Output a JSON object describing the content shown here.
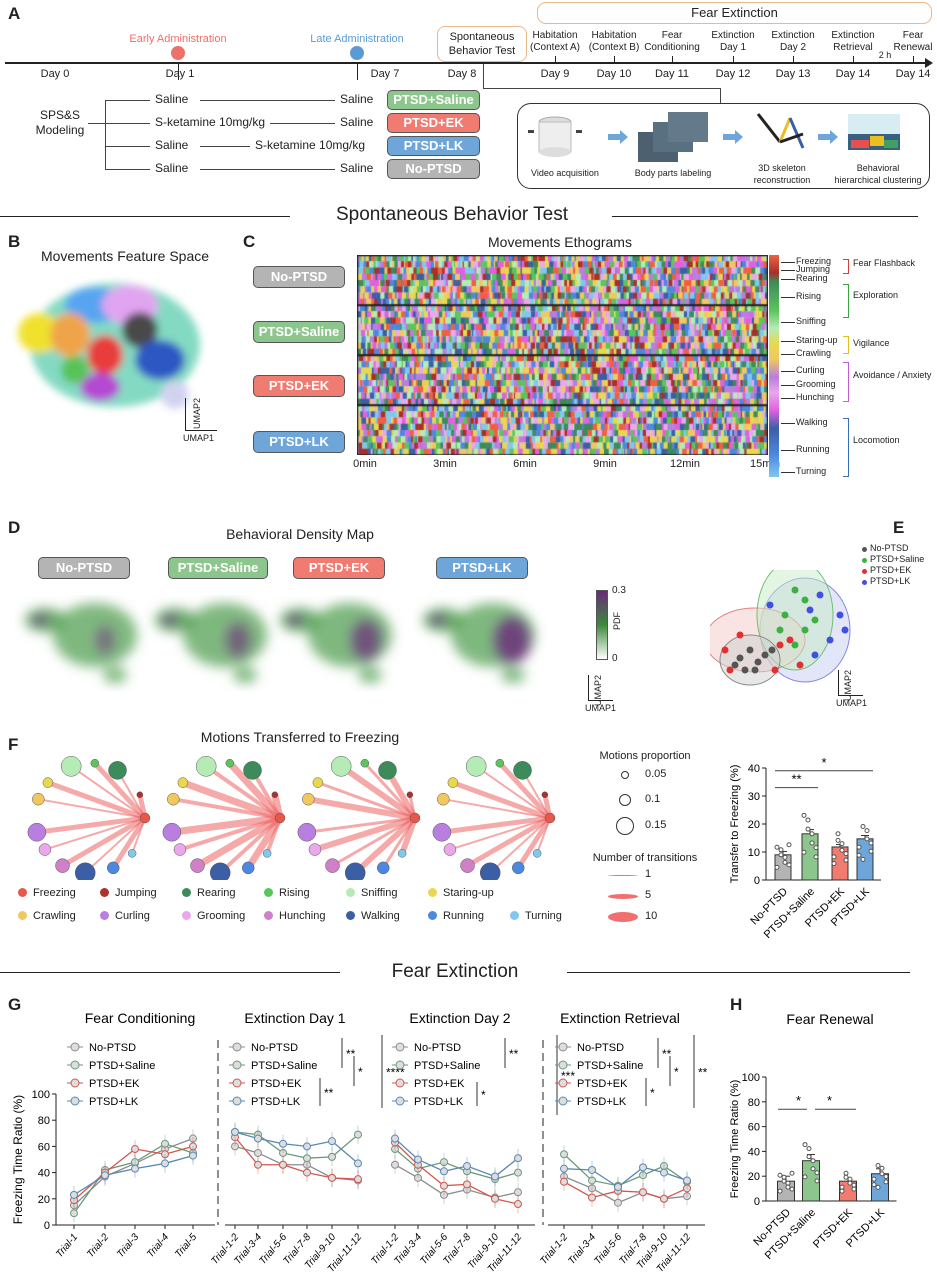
{
  "panel_labels": [
    "A",
    "B",
    "C",
    "D",
    "E",
    "F",
    "G",
    "H"
  ],
  "colors": {
    "no_ptsd": "#b4b4b4",
    "saline": "#8dc68c",
    "ek": "#ef7b71",
    "lk": "#6fa6da",
    "early": "#ef6f6a",
    "late": "#5b9bd5",
    "box_orange": "#e8b98a"
  },
  "panelA": {
    "fear_extinction": "Fear Extinction",
    "early": "Early Administration",
    "late": "Late Administration",
    "spontaneous": "Spontaneous Behavior Test",
    "days": [
      "Day 0",
      "Day 1",
      "Day 7",
      "Day 8",
      "Day 9",
      "Day 10",
      "Day 11",
      "Day 12",
      "Day 13",
      "Day 14",
      "Day 14"
    ],
    "stages": [
      {
        "l1": "Habitation",
        "l2": "(Context A)"
      },
      {
        "l1": "Habitation",
        "l2": "(Context B)"
      },
      {
        "l1": "Fear",
        "l2": "Conditioning"
      },
      {
        "l1": "Extinction",
        "l2": "Day 1"
      },
      {
        "l1": "Extinction",
        "l2": "Day 2"
      },
      {
        "l1": "Extinction",
        "l2": "Retrieval"
      },
      {
        "l1": "Fear",
        "l2": "Renewal"
      }
    ],
    "two_h": "2 h",
    "modeling": "SPS&S Modeling",
    "groups": [
      {
        "first": "Saline",
        "second": "Saline",
        "badge": "PTSD+Saline"
      },
      {
        "first": "S-ketamine 10mg/kg",
        "second": "Saline",
        "badge": "PTSD+EK"
      },
      {
        "first": "Saline",
        "mid": "S-ketamine 10mg/kg",
        "badge": "PTSD+LK"
      },
      {
        "first": "Saline",
        "second": "Saline",
        "badge": "No-PTSD"
      }
    ],
    "pipeline": [
      "Video acquisition",
      "Body parts labeling",
      "3D skeleton reconstruction",
      "Behavioral hierarchical clustering"
    ]
  },
  "section1": "Spontaneous Behavior Test",
  "section2": "Fear  Extinction",
  "panelB": {
    "title": "Movements Feature Space",
    "x": "UMAP1",
    "y": "UMAP2"
  },
  "panelC": {
    "title": "Movements Ethograms",
    "groups": [
      "No-PTSD",
      "PTSD+Saline",
      "PTSD+EK",
      "PTSD+LK"
    ],
    "ticks": [
      "0min",
      "3min",
      "6min",
      "9min",
      "12min",
      "15min"
    ],
    "movements": [
      "Freezing",
      "Jumping",
      "Rearing",
      "Rising",
      "Sniffing",
      "Staring-up",
      "Crawling",
      "Curling",
      "Grooming",
      "Hunching",
      "Walking",
      "Running",
      "Turning"
    ],
    "categories": [
      {
        "name": "Fear Flashback",
        "color": "#d0413a"
      },
      {
        "name": "Exploration",
        "color": "#3aa344"
      },
      {
        "name": "Vigilance",
        "color": "#e0c020"
      },
      {
        "name": "Avoidance / Anxiety",
        "color": "#c060d0"
      },
      {
        "name": "Locomotion",
        "color": "#3a6fb5"
      }
    ]
  },
  "panelD": {
    "title": "Behavioral Density Map",
    "groups": [
      "No-PTSD",
      "PTSD+Saline",
      "PTSD+EK",
      "PTSD+LK"
    ],
    "cbar_max": "0.3",
    "cbar_label": "PDF",
    "cbar_min": "0",
    "x": "UMAP1",
    "y": "UMAP2"
  },
  "panelE": {
    "legend": [
      "No-PTSD",
      "PTSD+Saline",
      "PTSD+EK",
      "PTSD+LK"
    ],
    "x": "UMAP1",
    "y": "UMAP2"
  },
  "panelF": {
    "title": "Motions Transferred to Freezing",
    "prop_title": "Motions proportion",
    "props": [
      "0.05",
      "0.1",
      "0.15"
    ],
    "trans_title": "Number of transitions",
    "trans": [
      "1",
      "5",
      "10"
    ],
    "legend": [
      {
        "name": "Freezing",
        "color": "#e8584a"
      },
      {
        "name": "Jumping",
        "color": "#a8322d"
      },
      {
        "name": "Rearing",
        "color": "#3d8a5a"
      },
      {
        "name": "Rising",
        "color": "#5cc45c"
      },
      {
        "name": "Sniffing",
        "color": "#b5ecb5"
      },
      {
        "name": "Staring-up",
        "color": "#e8d850"
      },
      {
        "name": "Crawling",
        "color": "#f0c860"
      },
      {
        "name": "Curling",
        "color": "#b87ee0"
      },
      {
        "name": "Grooming",
        "color": "#eaa8ea"
      },
      {
        "name": "Hunching",
        "color": "#d080c8"
      },
      {
        "name": "Walking",
        "color": "#3a5fa5"
      },
      {
        "name": "Running",
        "color": "#4d88e0"
      },
      {
        "name": "Turning",
        "color": "#80c8ee"
      }
    ]
  },
  "chart_data": [
    {
      "id": "transfer",
      "type": "bar",
      "title": "",
      "ylabel": "Transfer to Freezing (%)",
      "categories": [
        "No-PTSD",
        "PTSD+Saline",
        "PTSD+EK",
        "PTSD+LK"
      ],
      "values": [
        9,
        16.5,
        11.8,
        14.7
      ],
      "sem": [
        1.2,
        1.5,
        0.9,
        1.2
      ],
      "ylim": [
        0,
        40
      ],
      "yticks": [
        "0",
        "10",
        "20",
        "30",
        "40"
      ],
      "significance": [
        {
          "pair": [
            "No-PTSD",
            "PTSD+Saline"
          ],
          "label": "**"
        },
        {
          "pair": [
            "No-PTSD",
            "PTSD+LK"
          ],
          "label": "*"
        }
      ]
    },
    {
      "id": "freezing",
      "type": "line",
      "ylabel": "Freezing Time Ratio (%)",
      "ylim": [
        0,
        100
      ],
      "yticks": [
        "0",
        "20",
        "40",
        "60",
        "80",
        "100"
      ],
      "panels": [
        {
          "title": "Fear Conditioning",
          "x": [
            "Trial-1",
            "Trial-2",
            "Trial-3",
            "Trial-4",
            "Trial-5"
          ],
          "series": [
            {
              "name": "No-PTSD",
              "values": [
                15,
                37,
                47,
                58,
                66
              ]
            },
            {
              "name": "PTSD+Saline",
              "values": [
                9,
                42,
                48,
                62,
                55
              ]
            },
            {
              "name": "PTSD+EK",
              "values": [
                19,
                40,
                58,
                54,
                60
              ]
            },
            {
              "name": "PTSD+LK",
              "values": [
                23,
                38,
                43,
                47,
                53
              ]
            }
          ],
          "sig": []
        },
        {
          "title": "Extinction Day 1",
          "x": [
            "Trial-1-2",
            "Trial-3-4",
            "Trial-5-6",
            "Trial-7-8",
            "Trial-9-10",
            "Trial-11-12"
          ],
          "series": [
            {
              "name": "No-PTSD",
              "values": [
                60,
                55,
                46,
                46,
                36,
                34
              ]
            },
            {
              "name": "PTSD+Saline",
              "values": [
                71,
                69,
                55,
                51,
                52,
                69
              ]
            },
            {
              "name": "PTSD+EK",
              "values": [
                67,
                46,
                46,
                40,
                36,
                35
              ]
            },
            {
              "name": "PTSD+LK",
              "values": [
                71,
                66,
                62,
                60,
                64,
                47
              ]
            }
          ],
          "sig": [
            "**",
            "*",
            "**",
            "****"
          ]
        },
        {
          "title": "Extinction Day 2",
          "x": [
            "Trial-1-2",
            "Trial-3-4",
            "Trial-5-6",
            "Trial-7-8",
            "Trial-9-10",
            "Trial-11-12"
          ],
          "series": [
            {
              "name": "No-PTSD",
              "values": [
                46,
                36,
                23,
                27,
                21,
                25
              ]
            },
            {
              "name": "PTSD+Saline",
              "values": [
                58,
                43,
                48,
                41,
                35,
                40
              ]
            },
            {
              "name": "PTSD+EK",
              "values": [
                63,
                46,
                30,
                31,
                20,
                16
              ]
            },
            {
              "name": "PTSD+LK",
              "values": [
                66,
                50,
                41,
                45,
                37,
                51
              ]
            }
          ],
          "sig": [
            "**",
            "*",
            "***"
          ]
        },
        {
          "title": "Extinction Retrieval",
          "x": [
            "Trial-1-2",
            "Trial-3-4",
            "Trial-5-6",
            "Trial-7-8",
            "Trial-9-10",
            "Trial-11-12"
          ],
          "series": [
            {
              "name": "No-PTSD",
              "values": [
                37,
                28,
                17,
                25,
                20,
                22
              ]
            },
            {
              "name": "PTSD+Saline",
              "values": [
                54,
                34,
                30,
                38,
                45,
                33
              ]
            },
            {
              "name": "PTSD+EK",
              "values": [
                33,
                21,
                26,
                25,
                20,
                28
              ]
            },
            {
              "name": "PTSD+LK",
              "values": [
                43,
                42,
                29,
                44,
                40,
                34
              ]
            }
          ],
          "sig": [
            "**",
            "*",
            "*",
            "**"
          ]
        }
      ]
    },
    {
      "id": "renewal",
      "type": "bar",
      "title": "Fear Renewal",
      "ylabel": "Freezing Time Ratio (%)",
      "categories": [
        "No-PTSD",
        "PTSD+Saline",
        "PTSD+EK",
        "PTSD+LK"
      ],
      "values": [
        16,
        32.5,
        16,
        22
      ],
      "sem": [
        4,
        5,
        2,
        4
      ],
      "ylim": [
        0,
        100
      ],
      "yticks": [
        "0",
        "20",
        "40",
        "60",
        "80",
        "100"
      ],
      "significance": [
        {
          "pair": [
            "No-PTSD",
            "PTSD+Saline"
          ],
          "label": "*"
        },
        {
          "pair": [
            "PTSD+Saline",
            "PTSD+EK"
          ],
          "label": "*"
        }
      ]
    }
  ]
}
